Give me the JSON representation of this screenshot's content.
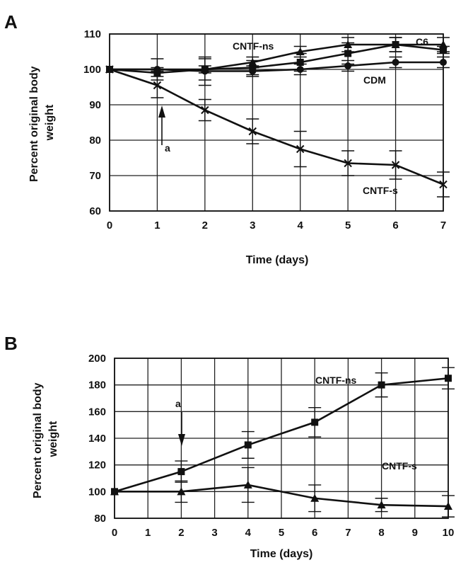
{
  "chart_data": [
    {
      "panel": "A",
      "type": "line",
      "xlabel": "Time (days)",
      "ylabel": "Percent original body weight",
      "xlim": [
        0,
        7
      ],
      "ylim": [
        60,
        110
      ],
      "xticks": [
        0,
        1,
        2,
        3,
        4,
        5,
        6,
        7
      ],
      "yticks": [
        60,
        70,
        80,
        90,
        100,
        110
      ],
      "grid": true,
      "x": [
        0,
        1,
        2,
        3,
        4,
        5,
        6,
        7
      ],
      "series": [
        {
          "name": "CNTF-ns",
          "marker": "triangle",
          "values": [
            100,
            100,
            100,
            102,
            105,
            107,
            107,
            107
          ],
          "errors": [
            0,
            0.5,
            1,
            1.5,
            1.5,
            2,
            2,
            2
          ]
        },
        {
          "name": "C6",
          "marker": "square",
          "values": [
            100,
            99,
            100,
            100.5,
            102,
            104.5,
            107,
            105.5
          ],
          "errors": [
            0,
            1,
            3,
            2,
            2.5,
            3,
            2,
            1
          ]
        },
        {
          "name": "CDM",
          "marker": "circle",
          "values": [
            100,
            100,
            99.5,
            99.5,
            100,
            101,
            102,
            102
          ],
          "errors": [
            0,
            3,
            4,
            1.5,
            1.5,
            1.5,
            1.5,
            1.5
          ]
        },
        {
          "name": "CNTF-s",
          "marker": "x",
          "values": [
            100,
            95.5,
            88.5,
            82.5,
            77.5,
            73.5,
            73,
            67.5
          ],
          "errors": [
            0,
            3.5,
            3,
            3.5,
            5,
            3.5,
            4,
            3.5
          ]
        }
      ],
      "annotations": [
        {
          "text": "a",
          "x": 1,
          "y": 90
        }
      ]
    },
    {
      "panel": "B",
      "type": "line",
      "xlabel": "Time (days)",
      "ylabel": "Percent original body weight",
      "xlim": [
        0,
        10
      ],
      "ylim": [
        80,
        200
      ],
      "xticks": [
        0,
        1,
        2,
        3,
        4,
        5,
        6,
        7,
        8,
        9,
        10
      ],
      "yticks": [
        80,
        100,
        120,
        140,
        160,
        180,
        200
      ],
      "grid": true,
      "x": [
        0,
        2,
        4,
        6,
        8,
        10
      ],
      "series": [
        {
          "name": "CNTF-ns",
          "marker": "square",
          "values": [
            100,
            115,
            135,
            152,
            180,
            185
          ],
          "errors": [
            0,
            8,
            10,
            11,
            9,
            8
          ]
        },
        {
          "name": "CNTF-s",
          "marker": "triangle",
          "values": [
            100,
            100,
            105,
            95,
            90,
            89
          ],
          "errors": [
            0,
            8,
            13,
            10,
            5,
            8
          ]
        }
      ],
      "annotations": [
        {
          "text": "a",
          "x": 2,
          "y": 140
        }
      ]
    }
  ]
}
